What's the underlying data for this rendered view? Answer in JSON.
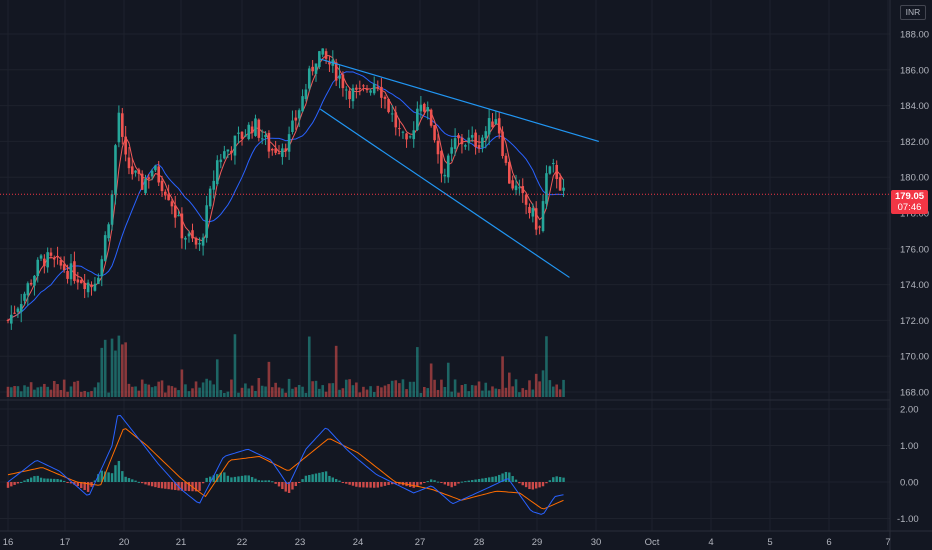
{
  "header": {
    "currency": "INR"
  },
  "last_price": {
    "value": "179.05",
    "countdown": "07:46"
  },
  "colors": {
    "background": "#131722",
    "grid": "#1e222d",
    "up": "#26a69a",
    "down": "#ef5350",
    "ma_short": "#f05a5a",
    "ma_long": "#2962ff",
    "macd_line": "#2962ff",
    "signal_line": "#ff6d00",
    "trendline": "#2196f3",
    "price_label": "#f23645",
    "text": "#b2b5be"
  },
  "chart_data": [
    {
      "type": "candlestick",
      "title": "",
      "price_axis": {
        "ticks": [
          "188.00",
          "186.00",
          "184.00",
          "182.00",
          "180.00",
          "178.00",
          "176.00",
          "174.00",
          "172.00",
          "170.00",
          "168.00"
        ],
        "ylim": [
          167.5,
          188.5
        ]
      },
      "time_axis": {
        "ticks": [
          "16",
          "17",
          "20",
          "21",
          "22",
          "23",
          "24",
          "27",
          "28",
          "29",
          "30",
          "Oct",
          "4",
          "5",
          "6",
          "7"
        ]
      },
      "anchors": [
        {
          "x": 0.0,
          "p": 172.0
        },
        {
          "x": 0.3,
          "p": 173.6
        },
        {
          "x": 0.6,
          "p": 175.5
        },
        {
          "x": 1.0,
          "p": 174.9
        },
        {
          "x": 1.45,
          "p": 174.0
        },
        {
          "x": 1.6,
          "p": 175.0
        },
        {
          "x": 1.8,
          "p": 179.0
        },
        {
          "x": 1.9,
          "p": 184.0
        },
        {
          "x": 2.0,
          "p": 181.0
        },
        {
          "x": 2.3,
          "p": 179.5
        },
        {
          "x": 2.5,
          "p": 180.5
        },
        {
          "x": 2.8,
          "p": 179.0
        },
        {
          "x": 3.0,
          "p": 177.0
        },
        {
          "x": 3.3,
          "p": 176.0
        },
        {
          "x": 3.6,
          "p": 181.0
        },
        {
          "x": 3.9,
          "p": 182.0
        },
        {
          "x": 4.2,
          "p": 183.0
        },
        {
          "x": 4.5,
          "p": 181.5
        },
        {
          "x": 4.8,
          "p": 182.0
        },
        {
          "x": 5.0,
          "p": 184.0
        },
        {
          "x": 5.3,
          "p": 187.0
        },
        {
          "x": 5.6,
          "p": 186.0
        },
        {
          "x": 5.8,
          "p": 185.0
        },
        {
          "x": 6.0,
          "p": 184.5
        },
        {
          "x": 6.3,
          "p": 185.5
        },
        {
          "x": 6.6,
          "p": 183.0
        },
        {
          "x": 6.8,
          "p": 181.5
        },
        {
          "x": 7.0,
          "p": 184.5
        },
        {
          "x": 7.2,
          "p": 183.0
        },
        {
          "x": 7.4,
          "p": 180.0
        },
        {
          "x": 7.6,
          "p": 182.0
        },
        {
          "x": 8.0,
          "p": 182.0
        },
        {
          "x": 8.3,
          "p": 183.5
        },
        {
          "x": 8.5,
          "p": 180.0
        },
        {
          "x": 8.9,
          "p": 178.0
        },
        {
          "x": 9.05,
          "p": 177.0
        },
        {
          "x": 9.15,
          "p": 180.0
        },
        {
          "x": 9.3,
          "p": 180.5
        },
        {
          "x": 9.45,
          "p": 179.05
        }
      ],
      "trendlines": [
        {
          "from": {
            "x": 5.35,
            "p": 186.6
          },
          "to": {
            "x": 10.05,
            "p": 182.0
          }
        },
        {
          "from": {
            "x": 5.35,
            "p": 183.8
          },
          "to": {
            "x": 9.55,
            "p": 174.4
          }
        }
      ]
    },
    {
      "type": "macd",
      "title": "",
      "axis": {
        "ticks": [
          "2.00",
          "1.00",
          "0.00",
          "-1.00"
        ],
        "ylim": [
          -1.2,
          2.1
        ]
      },
      "macd": [
        {
          "x": 0.0,
          "v": 0.0
        },
        {
          "x": 0.5,
          "v": 0.6
        },
        {
          "x": 0.9,
          "v": 0.3
        },
        {
          "x": 1.4,
          "v": -0.4
        },
        {
          "x": 1.8,
          "v": 1.0
        },
        {
          "x": 1.9,
          "v": 1.9
        },
        {
          "x": 2.2,
          "v": 1.3
        },
        {
          "x": 2.6,
          "v": 0.5
        },
        {
          "x": 3.0,
          "v": -0.2
        },
        {
          "x": 3.3,
          "v": -0.6
        },
        {
          "x": 3.7,
          "v": 0.7
        },
        {
          "x": 4.1,
          "v": 0.9
        },
        {
          "x": 4.5,
          "v": 0.6
        },
        {
          "x": 4.8,
          "v": -0.1
        },
        {
          "x": 5.1,
          "v": 0.9
        },
        {
          "x": 5.45,
          "v": 1.5
        },
        {
          "x": 5.8,
          "v": 0.9
        },
        {
          "x": 6.3,
          "v": 0.2
        },
        {
          "x": 6.9,
          "v": -0.3
        },
        {
          "x": 7.2,
          "v": -0.1
        },
        {
          "x": 7.55,
          "v": -0.6
        },
        {
          "x": 8.1,
          "v": -0.2
        },
        {
          "x": 8.5,
          "v": 0.1
        },
        {
          "x": 8.9,
          "v": -0.8
        },
        {
          "x": 9.1,
          "v": -0.9
        },
        {
          "x": 9.3,
          "v": -0.4
        },
        {
          "x": 9.45,
          "v": -0.35
        }
      ],
      "signal": [
        {
          "x": 0.0,
          "v": 0.2
        },
        {
          "x": 0.6,
          "v": 0.4
        },
        {
          "x": 1.2,
          "v": 0.0
        },
        {
          "x": 1.6,
          "v": -0.1
        },
        {
          "x": 2.0,
          "v": 1.5
        },
        {
          "x": 2.4,
          "v": 1.0
        },
        {
          "x": 3.0,
          "v": 0.1
        },
        {
          "x": 3.4,
          "v": -0.4
        },
        {
          "x": 3.8,
          "v": 0.6
        },
        {
          "x": 4.3,
          "v": 0.7
        },
        {
          "x": 4.8,
          "v": 0.3
        },
        {
          "x": 5.5,
          "v": 1.2
        },
        {
          "x": 6.0,
          "v": 0.8
        },
        {
          "x": 6.6,
          "v": 0.0
        },
        {
          "x": 7.2,
          "v": -0.2
        },
        {
          "x": 7.7,
          "v": -0.5
        },
        {
          "x": 8.3,
          "v": -0.25
        },
        {
          "x": 8.7,
          "v": -0.3
        },
        {
          "x": 9.1,
          "v": -0.75
        },
        {
          "x": 9.45,
          "v": -0.5
        }
      ]
    }
  ]
}
